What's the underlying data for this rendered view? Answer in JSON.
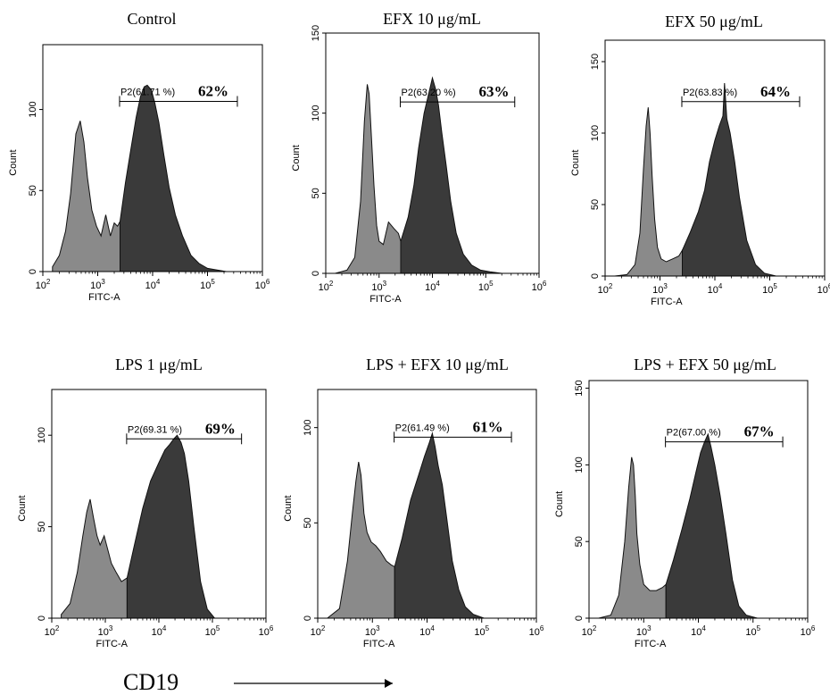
{
  "chart_data": [
    {
      "type": "area",
      "title": "Control",
      "xlabel": "FITC-A",
      "ylabel": "Count",
      "xscale": "log",
      "xlim": [
        100,
        1000000
      ],
      "ylim": [
        0,
        140
      ],
      "yticks": [
        "0",
        "50",
        "100"
      ],
      "xticks": [
        "10^2",
        "10^3",
        "10^4",
        "10^5",
        "10^6"
      ],
      "gate": {
        "name": "P2",
        "label": "P2(61.71 %)",
        "percent_label": "62%",
        "range": [
          2500,
          350000
        ],
        "y": 105
      },
      "series": [
        {
          "fill": "#8a8a8a",
          "x": [
            150,
            200,
            260,
            320,
            400,
            480,
            560,
            650,
            780,
            950,
            1150,
            1400,
            1700,
            2000,
            2300,
            2550
          ],
          "y": [
            3,
            10,
            25,
            48,
            85,
            93,
            80,
            58,
            38,
            28,
            22,
            35,
            22,
            30,
            28,
            31
          ]
        },
        {
          "fill": "#3a3a3a",
          "x": [
            2550,
            3200,
            4000,
            5000,
            6000,
            7000,
            8000,
            9500,
            11000,
            13000,
            16000,
            20000,
            26000,
            35000,
            50000,
            70000,
            100000,
            150000,
            220000
          ],
          "y": [
            31,
            55,
            75,
            95,
            108,
            114,
            115,
            112,
            104,
            92,
            72,
            52,
            35,
            22,
            10,
            5,
            2,
            1,
            0
          ]
        }
      ]
    },
    {
      "type": "area",
      "title": "EFX 10 μg/mL",
      "xlabel": "FITC-A",
      "ylabel": "Count",
      "xscale": "log",
      "xlim": [
        100,
        1000000
      ],
      "ylim": [
        0,
        150
      ],
      "yticks": [
        "0",
        "50",
        "100",
        "150"
      ],
      "xticks": [
        "10^2",
        "10^3",
        "10^4",
        "10^5",
        "10^6"
      ],
      "gate": {
        "name": "P2",
        "label": "P2(63.20 %)",
        "percent_label": "63%",
        "range": [
          2500,
          350000
        ],
        "y": 107
      },
      "series": [
        {
          "fill": "#8a8a8a",
          "x": [
            150,
            250,
            350,
            450,
            530,
            600,
            650,
            720,
            800,
            900,
            1000,
            1200,
            1500,
            1900,
            2300,
            2550
          ],
          "y": [
            0,
            2,
            10,
            45,
            95,
            118,
            112,
            85,
            55,
            30,
            20,
            18,
            32,
            28,
            25,
            20
          ]
        },
        {
          "fill": "#3a3a3a",
          "x": [
            2550,
            3500,
            4500,
            5500,
            7000,
            8500,
            10000,
            11500,
            13000,
            15000,
            18000,
            22000,
            28000,
            38000,
            55000,
            80000,
            120000,
            200000
          ],
          "y": [
            20,
            35,
            55,
            78,
            100,
            112,
            122,
            115,
            105,
            88,
            68,
            45,
            25,
            12,
            5,
            2,
            1,
            0
          ]
        }
      ]
    },
    {
      "type": "area",
      "title": "EFX 50 μg/mL",
      "xlabel": "FITC-A",
      "ylabel": "Count",
      "xscale": "log",
      "xlim": [
        100,
        1000000
      ],
      "ylim": [
        0,
        165
      ],
      "yticks": [
        "0",
        "50",
        "100",
        "150"
      ],
      "xticks": [
        "10^2",
        "10^3",
        "10^4",
        "10^5",
        "10^6"
      ],
      "gate": {
        "name": "P2",
        "label": "P2(63.83 %)",
        "percent_label": "64%",
        "range": [
          2500,
          350000
        ],
        "y": 122
      },
      "series": [
        {
          "fill": "#8a8a8a",
          "x": [
            150,
            250,
            350,
            430,
            500,
            560,
            610,
            660,
            720,
            800,
            900,
            1050,
            1300,
            1700,
            2200,
            2550
          ],
          "y": [
            0,
            1,
            8,
            30,
            75,
            105,
            118,
            100,
            70,
            40,
            20,
            12,
            10,
            12,
            14,
            18
          ]
        },
        {
          "fill": "#3a3a3a",
          "x": [
            2550,
            3500,
            5000,
            6500,
            8000,
            10000,
            12000,
            14000,
            15000,
            16500,
            19000,
            23000,
            28000,
            38000,
            55000,
            80000,
            130000
          ],
          "y": [
            18,
            30,
            45,
            60,
            80,
            95,
            105,
            112,
            135,
            110,
            100,
            80,
            55,
            25,
            8,
            2,
            0
          ]
        }
      ]
    },
    {
      "type": "area",
      "title": "LPS 1 μg/mL",
      "xlabel": "FITC-A",
      "ylabel": "Count",
      "xscale": "log",
      "xlim": [
        100,
        1000000
      ],
      "ylim": [
        0,
        125
      ],
      "yticks": [
        "0",
        "50",
        "100"
      ],
      "xticks": [
        "10^2",
        "10^3",
        "10^4",
        "10^5",
        "10^6"
      ],
      "gate": {
        "name": "P2",
        "label": "P2(69.31 %)",
        "percent_label": "69%",
        "range": [
          2500,
          350000
        ],
        "y": 98
      },
      "series": [
        {
          "fill": "#8a8a8a",
          "x": [
            150,
            220,
            300,
            380,
            450,
            520,
            600,
            700,
            800,
            950,
            1100,
            1300,
            1600,
            2000,
            2550
          ],
          "y": [
            2,
            8,
            25,
            45,
            58,
            65,
            55,
            45,
            40,
            45,
            38,
            30,
            25,
            20,
            22
          ]
        },
        {
          "fill": "#3a3a3a",
          "x": [
            2550,
            3500,
            5000,
            7000,
            10000,
            13000,
            16000,
            19000,
            22000,
            26000,
            30000,
            36000,
            45000,
            60000,
            80000,
            110000
          ],
          "y": [
            22,
            40,
            60,
            75,
            85,
            92,
            95,
            98,
            100,
            96,
            90,
            75,
            50,
            20,
            5,
            0
          ]
        }
      ]
    },
    {
      "type": "area",
      "title": "LPS + EFX 10 μg/mL",
      "xlabel": "FITC-A",
      "ylabel": "Count",
      "xscale": "log",
      "xlim": [
        100,
        1000000
      ],
      "ylim": [
        0,
        120
      ],
      "yticks": [
        "0",
        "50",
        "100"
      ],
      "xticks": [
        "10^2",
        "10^3",
        "10^4",
        "10^5",
        "10^6"
      ],
      "gate": {
        "name": "P2",
        "label": "P2(61.49 %)",
        "percent_label": "61%",
        "range": [
          2500,
          350000
        ],
        "y": 95
      },
      "series": [
        {
          "fill": "#8a8a8a",
          "x": [
            150,
            250,
            350,
            430,
            500,
            560,
            620,
            700,
            800,
            950,
            1150,
            1400,
            1800,
            2200,
            2550
          ],
          "y": [
            0,
            5,
            30,
            55,
            72,
            82,
            75,
            55,
            45,
            40,
            38,
            35,
            30,
            28,
            27
          ]
        },
        {
          "fill": "#3a3a3a",
          "x": [
            2550,
            3500,
            5000,
            7000,
            9000,
            11000,
            12500,
            14000,
            16000,
            19000,
            23000,
            29000,
            38000,
            50000,
            70000,
            110000
          ],
          "y": [
            27,
            42,
            62,
            75,
            85,
            92,
            97,
            90,
            80,
            70,
            52,
            30,
            15,
            6,
            2,
            0
          ]
        }
      ]
    },
    {
      "type": "area",
      "title": "LPS + EFX 50 μg/mL",
      "xlabel": "FITC-A",
      "ylabel": "Count",
      "xscale": "log",
      "xlim": [
        100,
        1000000
      ],
      "ylim": [
        0,
        155
      ],
      "yticks": [
        "0",
        "50",
        "100",
        "150"
      ],
      "xticks": [
        "10^2",
        "10^3",
        "10^4",
        "10^5",
        "10^6"
      ],
      "gate": {
        "name": "P2",
        "label": "P2(67.00 %)",
        "percent_label": "67%",
        "range": [
          2500,
          350000
        ],
        "y": 115
      },
      "series": [
        {
          "fill": "#8a8a8a",
          "x": [
            150,
            250,
            350,
            450,
            530,
            600,
            650,
            700,
            750,
            850,
            1000,
            1300,
            1700,
            2200,
            2550
          ],
          "y": [
            0,
            2,
            15,
            50,
            85,
            105,
            100,
            80,
            55,
            35,
            22,
            18,
            18,
            20,
            22
          ]
        },
        {
          "fill": "#3a3a3a",
          "x": [
            2550,
            3500,
            5000,
            7000,
            9000,
            11000,
            13000,
            15000,
            17000,
            20000,
            25000,
            32000,
            42000,
            55000,
            75000,
            120000
          ],
          "y": [
            22,
            38,
            58,
            78,
            95,
            108,
            115,
            120,
            112,
            100,
            80,
            55,
            25,
            8,
            2,
            0
          ]
        }
      ]
    }
  ],
  "footer": {
    "label": "CD19"
  }
}
